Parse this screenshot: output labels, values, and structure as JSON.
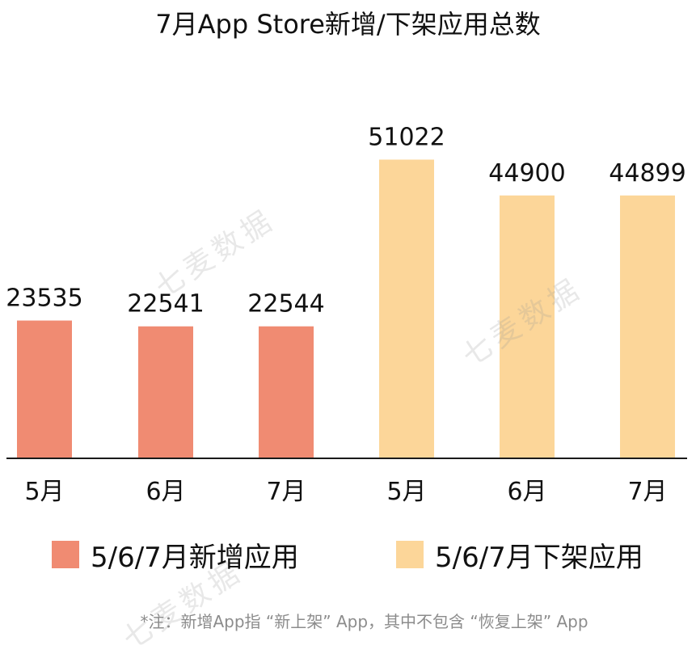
{
  "title": "7月App Store新增/下架应用总数",
  "chart_data": {
    "type": "bar",
    "categories": [
      "5月",
      "6月",
      "7月",
      "5月",
      "6月",
      "7月"
    ],
    "series": [
      {
        "name": "5/6/7月新增应用",
        "color": "#f08b72",
        "values": [
          23535,
          22541,
          22544,
          null,
          null,
          null
        ]
      },
      {
        "name": "5/6/7月下架应用",
        "color": "#fcd699",
        "values": [
          null,
          null,
          null,
          51022,
          44900,
          44899
        ]
      }
    ],
    "data_labels": [
      "23535",
      "22541",
      "22544",
      "51022",
      "44900",
      "44899"
    ],
    "ylim": [
      0,
      70000
    ],
    "grid": false,
    "legend_placement": "bottom"
  },
  "legend": {
    "added": "5/6/7月新增应用",
    "removed": "5/6/7月下架应用"
  },
  "footnote": "*注：新增App指 “新上架” App，其中不包含 “恢复上架” App",
  "watermark": "七麦数据"
}
